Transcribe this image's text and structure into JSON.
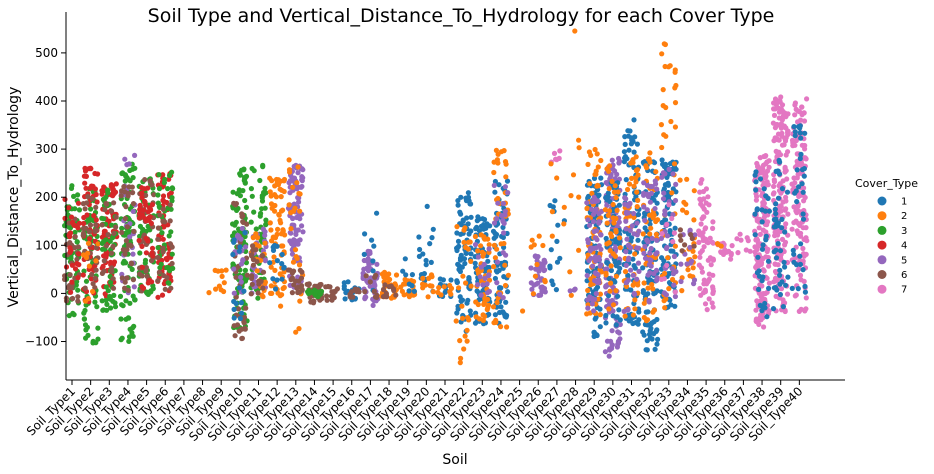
{
  "chart_data": {
    "type": "scatter",
    "subtype": "swarm",
    "title": "Soil Type and Vertical_Distance_To_Hydrology for each Cover Type",
    "xlabel": "Soil",
    "ylabel": "Vertical_Distance_To_Hydrology",
    "ylim": [
      -180,
      585
    ],
    "yticks": [
      -100,
      0,
      100,
      200,
      300,
      400,
      500
    ],
    "grid": false,
    "legend_position": "right",
    "categories": [
      "Soil_Type1",
      "Soil_Type2",
      "Soil_Type3",
      "Soil_Type4",
      "Soil_Type5",
      "Soil_Type6",
      "Soil_Type7",
      "Soil_Type8",
      "Soil_Type9",
      "Soil_Type10",
      "Soil_Type11",
      "Soil_Type12",
      "Soil_Type13",
      "Soil_Type14",
      "Soil_Type15",
      "Soil_Type16",
      "Soil_Type17",
      "Soil_Type18",
      "Soil_Type19",
      "Soil_Type20",
      "Soil_Type21",
      "Soil_Type22",
      "Soil_Type23",
      "Soil_Type24",
      "Soil_Type25",
      "Soil_Type26",
      "Soil_Type27",
      "Soil_Type28",
      "Soil_Type29",
      "Soil_Type30",
      "Soil_Type31",
      "Soil_Type32",
      "Soil_Type33",
      "Soil_Type34",
      "Soil_Type35",
      "Soil_Type36",
      "Soil_Type37",
      "Soil_Type38",
      "Soil_Type39",
      "Soil_Type40"
    ],
    "legend": {
      "title": "Cover_Type",
      "entries": [
        {
          "name": "1",
          "color": "#1f77b4"
        },
        {
          "name": "2",
          "color": "#ff7f0e"
        },
        {
          "name": "3",
          "color": "#2ca02c"
        },
        {
          "name": "4",
          "color": "#d62728"
        },
        {
          "name": "5",
          "color": "#9467bd"
        },
        {
          "name": "6",
          "color": "#8c564b"
        },
        {
          "name": "7",
          "color": "#e377c2"
        }
      ]
    },
    "distribution": [
      {
        "cat": 1,
        "groups": [
          {
            "c": "3",
            "lo": -50,
            "hi": 225,
            "n": 60
          },
          {
            "c": "6",
            "lo": -40,
            "hi": 160,
            "n": 30
          },
          {
            "c": "4",
            "lo": -10,
            "hi": 200,
            "n": 25
          }
        ]
      },
      {
        "cat": 2,
        "groups": [
          {
            "c": "3",
            "lo": -115,
            "hi": 220,
            "n": 70
          },
          {
            "c": "4",
            "lo": -20,
            "hi": 270,
            "n": 60
          },
          {
            "c": "6",
            "lo": -10,
            "hi": 220,
            "n": 30
          },
          {
            "c": "2",
            "lo": -50,
            "hi": 120,
            "n": 10
          }
        ]
      },
      {
        "cat": 3,
        "groups": [
          {
            "c": "4",
            "lo": -10,
            "hi": 230,
            "n": 80
          },
          {
            "c": "3",
            "lo": -40,
            "hi": 220,
            "n": 50
          },
          {
            "c": "6",
            "lo": 0,
            "hi": 200,
            "n": 20
          }
        ]
      },
      {
        "cat": 4,
        "groups": [
          {
            "c": "3",
            "lo": -105,
            "hi": 270,
            "n": 80
          },
          {
            "c": "5",
            "lo": 0,
            "hi": 295,
            "n": 25
          },
          {
            "c": "6",
            "lo": -20,
            "hi": 230,
            "n": 30
          }
        ]
      },
      {
        "cat": 5,
        "groups": [
          {
            "c": "3",
            "lo": -10,
            "hi": 250,
            "n": 60
          },
          {
            "c": "6",
            "lo": 0,
            "hi": 240,
            "n": 40
          },
          {
            "c": "4",
            "lo": -10,
            "hi": 220,
            "n": 40
          }
        ]
      },
      {
        "cat": 6,
        "groups": [
          {
            "c": "4",
            "lo": -10,
            "hi": 250,
            "n": 70
          },
          {
            "c": "3",
            "lo": 0,
            "hi": 260,
            "n": 40
          },
          {
            "c": "6",
            "lo": 0,
            "hi": 200,
            "n": 20
          }
        ]
      },
      {
        "cat": 8,
        "groups": [
          {
            "c": "2",
            "lo": -5,
            "hi": 5,
            "n": 1
          }
        ]
      },
      {
        "cat": 9,
        "groups": [
          {
            "c": "2",
            "lo": -10,
            "hi": 50,
            "n": 10
          }
        ]
      },
      {
        "cat": 10,
        "groups": [
          {
            "c": "3",
            "lo": -80,
            "hi": 265,
            "n": 90
          },
          {
            "c": "6",
            "lo": -105,
            "hi": 190,
            "n": 40
          },
          {
            "c": "5",
            "lo": 0,
            "hi": 150,
            "n": 20
          },
          {
            "c": "1",
            "lo": -80,
            "hi": 130,
            "n": 15
          }
        ]
      },
      {
        "cat": 11,
        "groups": [
          {
            "c": "3",
            "lo": -10,
            "hi": 270,
            "n": 50
          },
          {
            "c": "5",
            "lo": 0,
            "hi": 140,
            "n": 30
          },
          {
            "c": "2",
            "lo": -10,
            "hi": 130,
            "n": 20
          },
          {
            "c": "6",
            "lo": -10,
            "hi": 100,
            "n": 20
          }
        ]
      },
      {
        "cat": 12,
        "groups": [
          {
            "c": "2",
            "lo": -30,
            "hi": 245,
            "n": 70
          },
          {
            "c": "1",
            "lo": 0,
            "hi": 100,
            "n": 15
          }
        ]
      },
      {
        "cat": 13,
        "groups": [
          {
            "c": "5",
            "lo": -10,
            "hi": 270,
            "n": 90
          },
          {
            "c": "2",
            "lo": -90,
            "hi": 280,
            "n": 25
          },
          {
            "c": "6",
            "lo": 0,
            "hi": 50,
            "n": 20
          }
        ]
      },
      {
        "cat": 14,
        "groups": [
          {
            "c": "6",
            "lo": -20,
            "hi": 20,
            "n": 35
          },
          {
            "c": "3",
            "lo": -10,
            "hi": 10,
            "n": 15
          }
        ]
      },
      {
        "cat": 15,
        "groups": [
          {
            "c": "6",
            "lo": -15,
            "hi": 15,
            "n": 15
          }
        ]
      },
      {
        "cat": 16,
        "groups": [
          {
            "c": "1",
            "lo": -15,
            "hi": 25,
            "n": 20
          },
          {
            "c": "6",
            "lo": -10,
            "hi": 10,
            "n": 10
          }
        ]
      },
      {
        "cat": 17,
        "groups": [
          {
            "c": "5",
            "lo": -40,
            "hi": 90,
            "n": 50
          },
          {
            "c": "1",
            "lo": -20,
            "hi": 180,
            "n": 8
          },
          {
            "c": "6",
            "lo": -10,
            "hi": 40,
            "n": 10
          }
        ]
      },
      {
        "cat": 18,
        "groups": [
          {
            "c": "2",
            "lo": -10,
            "hi": 45,
            "n": 30
          },
          {
            "c": "6",
            "lo": -10,
            "hi": 20,
            "n": 10
          }
        ]
      },
      {
        "cat": 19,
        "groups": [
          {
            "c": "2",
            "lo": -10,
            "hi": 30,
            "n": 20
          },
          {
            "c": "1",
            "lo": -10,
            "hi": 85,
            "n": 8
          }
        ]
      },
      {
        "cat": 20,
        "groups": [
          {
            "c": "1",
            "lo": -10,
            "hi": 190,
            "n": 18
          },
          {
            "c": "2",
            "lo": -10,
            "hi": 50,
            "n": 12
          }
        ]
      },
      {
        "cat": 21,
        "groups": [
          {
            "c": "1",
            "lo": -10,
            "hi": 30,
            "n": 12
          },
          {
            "c": "2",
            "lo": -10,
            "hi": 20,
            "n": 8
          }
        ]
      },
      {
        "cat": 22,
        "groups": [
          {
            "c": "1",
            "lo": -80,
            "hi": 210,
            "n": 80
          },
          {
            "c": "2",
            "lo": -145,
            "hi": 140,
            "n": 25
          }
        ]
      },
      {
        "cat": 23,
        "groups": [
          {
            "c": "1",
            "lo": -80,
            "hi": 160,
            "n": 70
          },
          {
            "c": "2",
            "lo": -60,
            "hi": 130,
            "n": 40
          },
          {
            "c": "5",
            "lo": -10,
            "hi": 110,
            "n": 15
          }
        ]
      },
      {
        "cat": 24,
        "groups": [
          {
            "c": "1",
            "lo": -70,
            "hi": 240,
            "n": 70
          },
          {
            "c": "2",
            "lo": -75,
            "hi": 300,
            "n": 40
          },
          {
            "c": "5",
            "lo": -10,
            "hi": 240,
            "n": 20
          }
        ]
      },
      {
        "cat": 25,
        "groups": [
          {
            "c": "2",
            "lo": -40,
            "hi": -30,
            "n": 1
          }
        ]
      },
      {
        "cat": 26,
        "groups": [
          {
            "c": "5",
            "lo": -5,
            "hi": 80,
            "n": 35
          },
          {
            "c": "2",
            "lo": -5,
            "hi": 120,
            "n": 10
          }
        ]
      },
      {
        "cat": 27,
        "groups": [
          {
            "c": "1",
            "lo": 0,
            "hi": 200,
            "n": 15
          },
          {
            "c": "7",
            "lo": 270,
            "hi": 300,
            "n": 6
          },
          {
            "c": "2",
            "lo": 60,
            "hi": 280,
            "n": 6
          }
        ]
      },
      {
        "cat": 28,
        "groups": [
          {
            "c": "2",
            "lo": -10,
            "hi": 355,
            "n": 8
          },
          {
            "c": "2",
            "lo": 545,
            "hi": 550,
            "n": 1
          },
          {
            "c": "5",
            "lo": -10,
            "hi": 10,
            "n": 3
          }
        ]
      },
      {
        "cat": 29,
        "groups": [
          {
            "c": "1",
            "lo": -90,
            "hi": 240,
            "n": 90
          },
          {
            "c": "2",
            "lo": -60,
            "hi": 310,
            "n": 60
          },
          {
            "c": "5",
            "lo": -40,
            "hi": 200,
            "n": 60
          }
        ]
      },
      {
        "cat": 30,
        "groups": [
          {
            "c": "5",
            "lo": -135,
            "hi": 285,
            "n": 120
          },
          {
            "c": "1",
            "lo": -70,
            "hi": 240,
            "n": 60
          },
          {
            "c": "2",
            "lo": -40,
            "hi": 270,
            "n": 40
          }
        ]
      },
      {
        "cat": 31,
        "groups": [
          {
            "c": "1",
            "lo": -70,
            "hi": 365,
            "n": 90
          },
          {
            "c": "2",
            "lo": -50,
            "hi": 290,
            "n": 50
          },
          {
            "c": "5",
            "lo": -50,
            "hi": 200,
            "n": 40
          }
        ]
      },
      {
        "cat": 32,
        "groups": [
          {
            "c": "1",
            "lo": -120,
            "hi": 280,
            "n": 90
          },
          {
            "c": "2",
            "lo": -60,
            "hi": 295,
            "n": 50
          },
          {
            "c": "5",
            "lo": -20,
            "hi": 250,
            "n": 40
          }
        ]
      },
      {
        "cat": 33,
        "groups": [
          {
            "c": "1",
            "lo": -40,
            "hi": 280,
            "n": 90
          },
          {
            "c": "2",
            "lo": -40,
            "hi": 555,
            "n": 40
          },
          {
            "c": "5",
            "lo": -10,
            "hi": 260,
            "n": 30
          },
          {
            "c": "7",
            "lo": 0,
            "hi": 200,
            "n": 10
          }
        ]
      },
      {
        "cat": 34,
        "groups": [
          {
            "c": "2",
            "lo": 0,
            "hi": 250,
            "n": 25
          },
          {
            "c": "5",
            "lo": 0,
            "hi": 140,
            "n": 15
          },
          {
            "c": "6",
            "lo": 40,
            "hi": 140,
            "n": 8
          }
        ]
      },
      {
        "cat": 35,
        "groups": [
          {
            "c": "7",
            "lo": -40,
            "hi": 240,
            "n": 70
          }
        ]
      },
      {
        "cat": 36,
        "groups": [
          {
            "c": "7",
            "lo": 70,
            "hi": 105,
            "n": 15
          },
          {
            "c": "2",
            "lo": 90,
            "hi": 105,
            "n": 3
          }
        ]
      },
      {
        "cat": 37,
        "groups": [
          {
            "c": "7",
            "lo": 70,
            "hi": 130,
            "n": 8
          }
        ]
      },
      {
        "cat": 38,
        "groups": [
          {
            "c": "7",
            "lo": -70,
            "hi": 290,
            "n": 170
          },
          {
            "c": "1",
            "lo": -50,
            "hi": 260,
            "n": 35
          }
        ]
      },
      {
        "cat": 39,
        "groups": [
          {
            "c": "7",
            "lo": -50,
            "hi": 410,
            "n": 170
          },
          {
            "c": "1",
            "lo": -40,
            "hi": 280,
            "n": 40
          }
        ]
      },
      {
        "cat": 40,
        "groups": [
          {
            "c": "7",
            "lo": -40,
            "hi": 405,
            "n": 130
          },
          {
            "c": "1",
            "lo": -10,
            "hi": 350,
            "n": 35
          }
        ]
      }
    ]
  }
}
